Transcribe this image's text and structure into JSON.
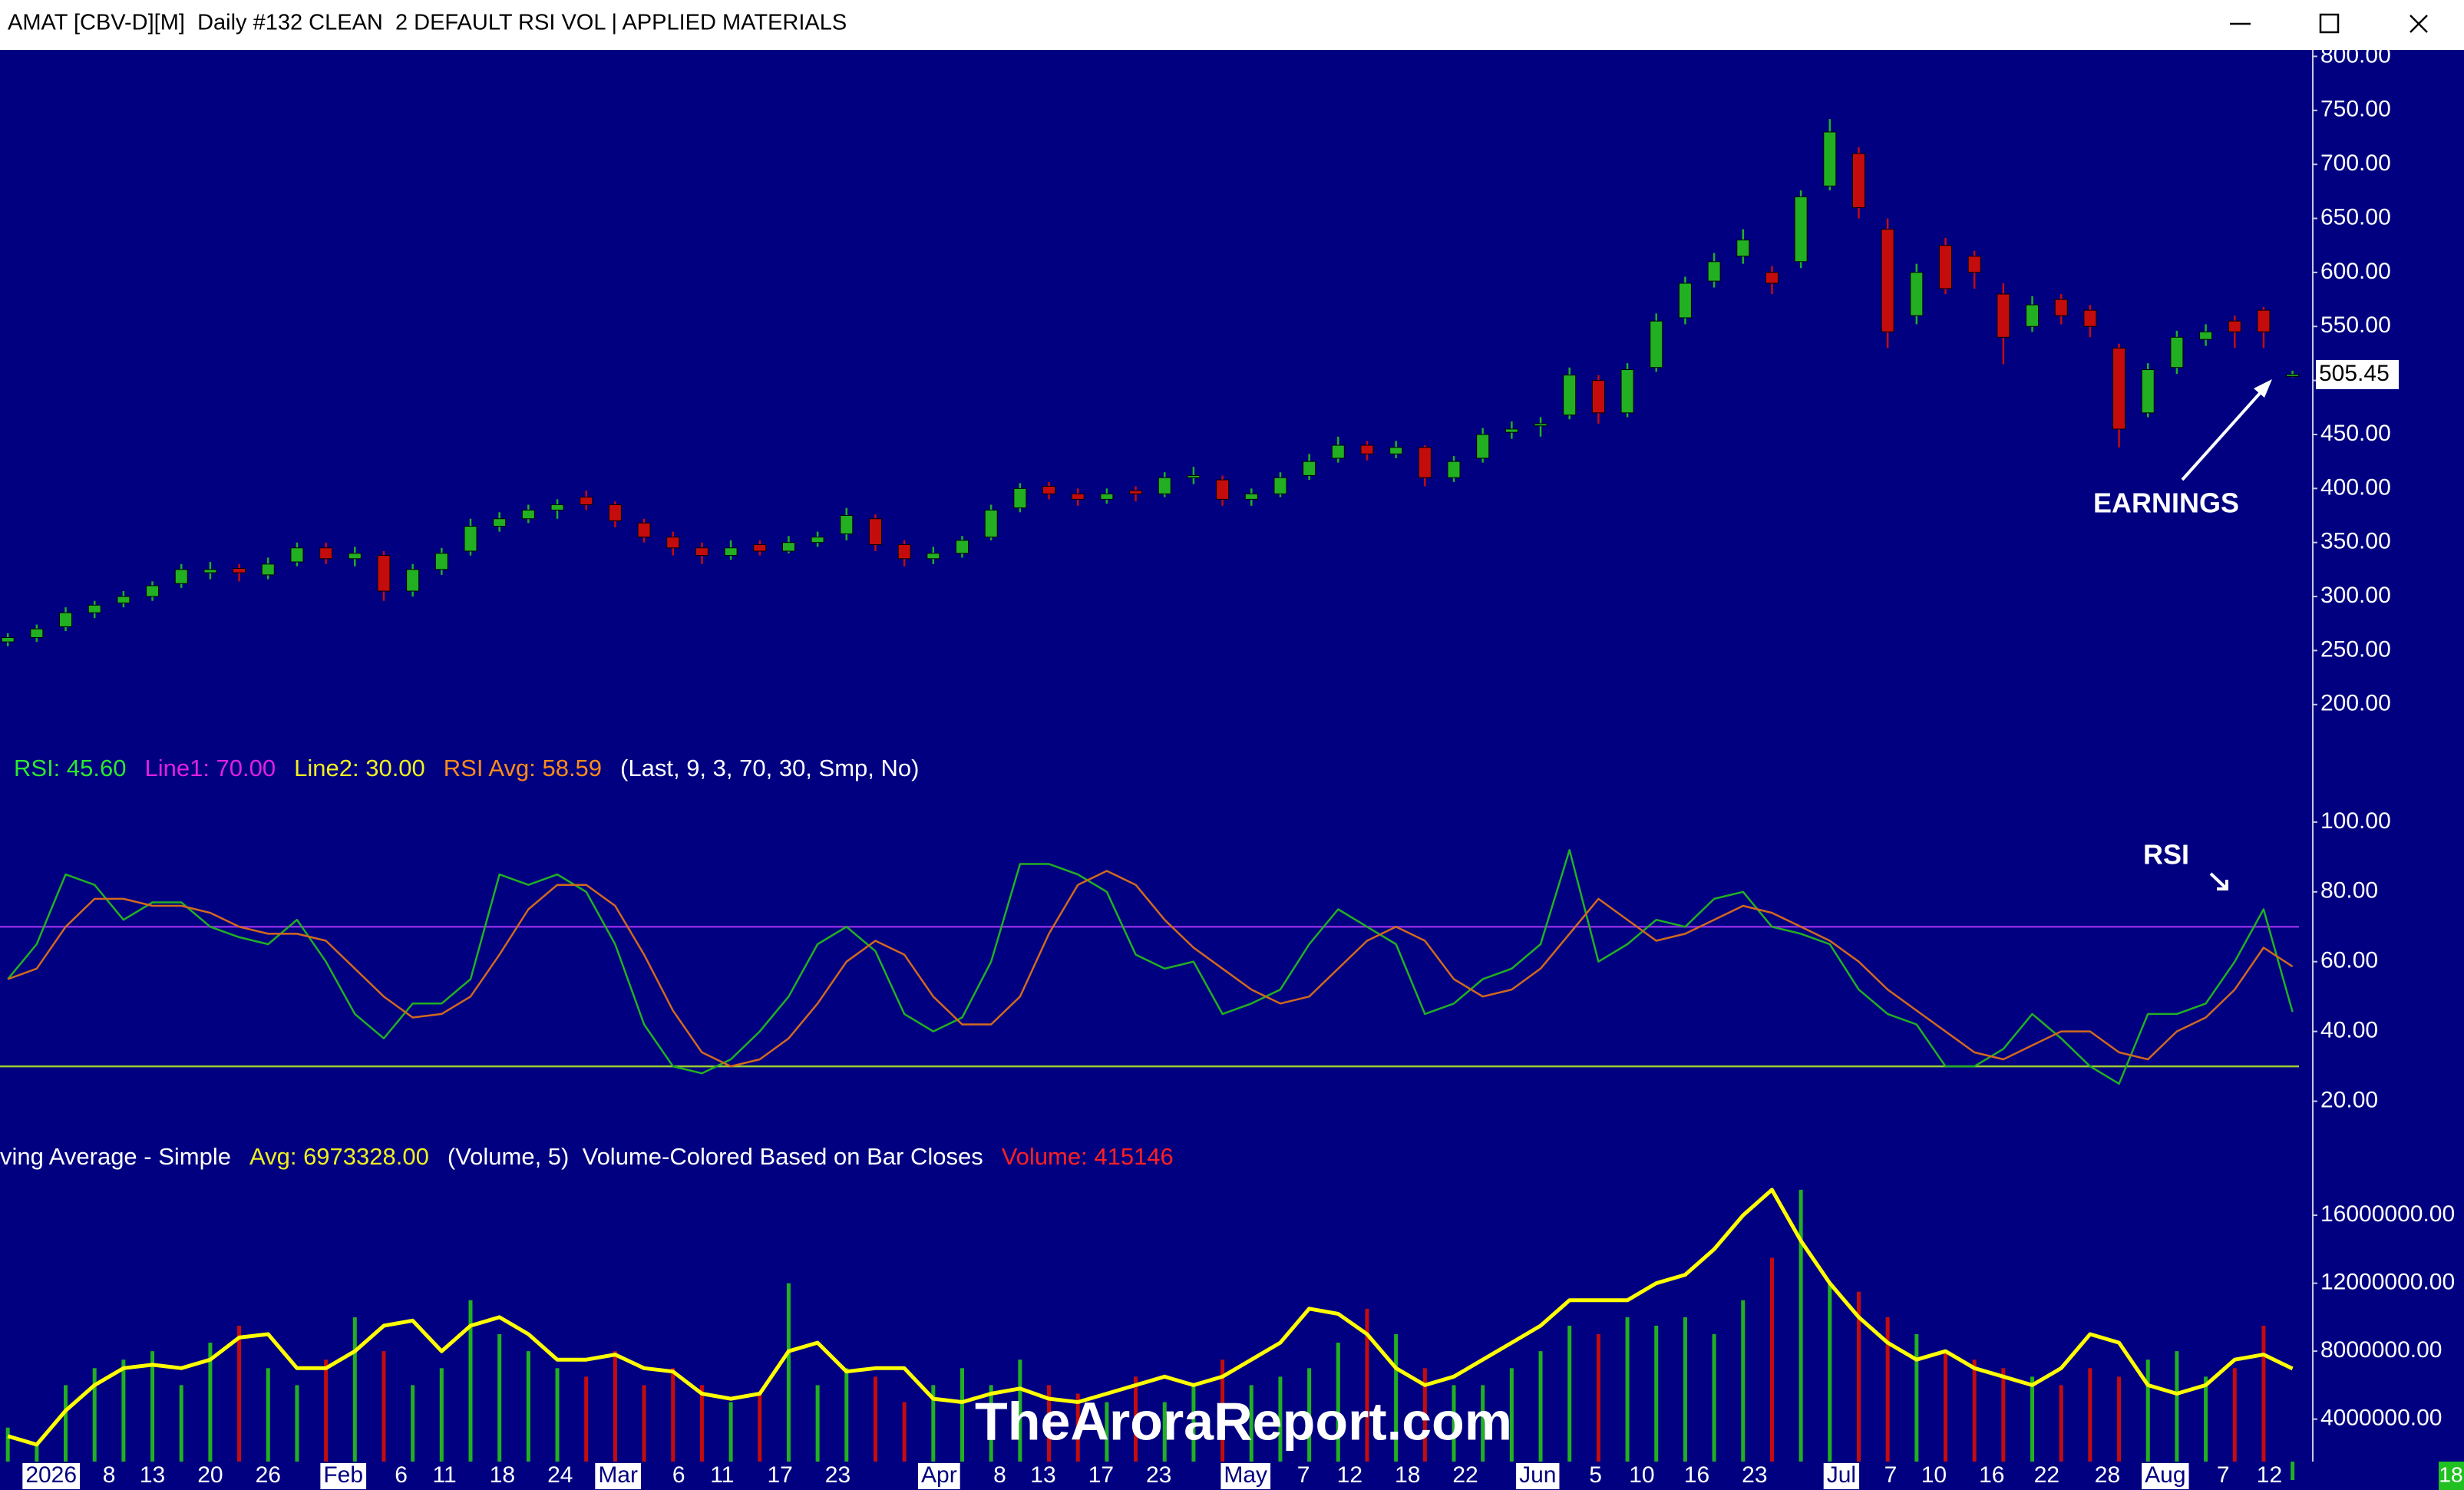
{
  "window": {
    "title": "AMAT [CBV-D][M]  Daily #132 CLEAN  2 DEFAULT RSI VOL | APPLIED MATERIALS",
    "corner_badge": "18"
  },
  "watermark": "TheAroraReport.com",
  "chart_data": [
    {
      "type": "candlestick",
      "up_color": "#22b022",
      "down_color": "#c40c0c",
      "xlim": [
        -0.27,
        79.7
      ],
      "ylim": [
        170,
        806
      ],
      "yticks": [
        {
          "value": 800,
          "label": "800.00"
        },
        {
          "value": 750,
          "label": "750.00"
        },
        {
          "value": 700,
          "label": "700.00"
        },
        {
          "value": 650,
          "label": "650.00"
        },
        {
          "value": 600,
          "label": "600.00"
        },
        {
          "value": 550,
          "label": "550.00"
        },
        {
          "value": 500,
          "label": "500.00"
        },
        {
          "value": 450,
          "label": "450.00"
        },
        {
          "value": 400,
          "label": "400.00"
        },
        {
          "value": 350,
          "label": "350.00"
        },
        {
          "value": 300,
          "label": "300.00"
        },
        {
          "value": 250,
          "label": "250.00"
        },
        {
          "value": 200,
          "label": "200.00"
        }
      ],
      "open": [
        258,
        262,
        272,
        285,
        294,
        300,
        312,
        322,
        326,
        320,
        332,
        345,
        335,
        338,
        305,
        325,
        342,
        365,
        372,
        380,
        392,
        385,
        368,
        355,
        345,
        338,
        348,
        342,
        350,
        358,
        372,
        348,
        335,
        340,
        355,
        382,
        402,
        395,
        390,
        398,
        395,
        410,
        408,
        390,
        395,
        412,
        428,
        440,
        432,
        438,
        410,
        428,
        452,
        458,
        468,
        500,
        470,
        512,
        558,
        592,
        615,
        600,
        610,
        680,
        710,
        640,
        560,
        625,
        615,
        580,
        550,
        575,
        565,
        530,
        470,
        512,
        538,
        555,
        565,
        505
      ],
      "high": [
        266,
        274,
        290,
        296,
        305,
        314,
        330,
        332,
        330,
        336,
        350,
        350,
        346,
        342,
        330,
        345,
        372,
        378,
        385,
        390,
        398,
        388,
        372,
        360,
        350,
        352,
        352,
        356,
        360,
        382,
        376,
        352,
        346,
        356,
        385,
        405,
        406,
        400,
        400,
        402,
        415,
        420,
        412,
        400,
        415,
        432,
        448,
        444,
        444,
        440,
        430,
        456,
        462,
        466,
        512,
        505,
        516,
        562,
        596,
        618,
        640,
        606,
        676,
        742,
        716,
        650,
        608,
        632,
        620,
        590,
        578,
        580,
        570,
        534,
        516,
        546,
        552,
        560,
        568,
        509
      ],
      "low": [
        254,
        258,
        268,
        280,
        290,
        296,
        308,
        316,
        314,
        316,
        328,
        330,
        328,
        296,
        300,
        320,
        338,
        360,
        368,
        372,
        380,
        364,
        350,
        338,
        330,
        334,
        338,
        340,
        346,
        352,
        342,
        328,
        330,
        336,
        352,
        378,
        390,
        384,
        386,
        388,
        392,
        404,
        384,
        384,
        392,
        408,
        424,
        426,
        428,
        402,
        406,
        424,
        446,
        448,
        464,
        460,
        466,
        508,
        552,
        586,
        608,
        580,
        604,
        676,
        650,
        530,
        552,
        580,
        585,
        515,
        545,
        552,
        540,
        438,
        466,
        506,
        532,
        530,
        530,
        503
      ],
      "close": [
        262,
        270,
        285,
        292,
        300,
        310,
        325,
        325,
        322,
        330,
        345,
        335,
        340,
        305,
        325,
        340,
        365,
        372,
        380,
        385,
        385,
        370,
        355,
        345,
        338,
        345,
        342,
        350,
        355,
        375,
        348,
        335,
        340,
        352,
        380,
        400,
        395,
        390,
        395,
        395,
        410,
        412,
        390,
        395,
        410,
        425,
        440,
        432,
        438,
        410,
        425,
        450,
        455,
        460,
        505,
        470,
        510,
        555,
        590,
        610,
        630,
        590,
        670,
        730,
        660,
        545,
        600,
        585,
        600,
        540,
        570,
        560,
        550,
        455,
        510,
        540,
        545,
        545,
        545,
        505.45
      ],
      "annotation": "EARNINGS"
    },
    {
      "type": "line",
      "header": [
        {
          "text": "RSI: 45.60",
          "color": "#2ee82e"
        },
        {
          "text": "Line1: 70.00",
          "color": "#e020e0"
        },
        {
          "text": "Line2: 30.00",
          "color": "#f0f020"
        },
        {
          "text": "RSI Avg: 58.59",
          "color": "#ff8c1a"
        },
        {
          "text": "(Last, 9, 3, 70, 30, Smp, No)",
          "color": "#ffffff"
        }
      ],
      "xlim": [
        -0.27,
        79.7
      ],
      "ylim": [
        10,
        109
      ],
      "yticks": [
        {
          "value": 100,
          "label": "100.00"
        },
        {
          "value": 80,
          "label": "80.00"
        },
        {
          "value": 60,
          "label": "60.00"
        },
        {
          "value": 40,
          "label": "40.00"
        },
        {
          "value": 20,
          "label": "20.00"
        }
      ],
      "hlines": [
        {
          "value": 70,
          "color": "#8a2be2"
        },
        {
          "value": 30,
          "color": "#9acd32"
        }
      ],
      "series": [
        {
          "color": "#22b022",
          "values": [
            55,
            65,
            85,
            82,
            72,
            77,
            77,
            70,
            67,
            65,
            72,
            60,
            45,
            38,
            48,
            48,
            55,
            85,
            82,
            85,
            80,
            65,
            42,
            30,
            28,
            32,
            40,
            50,
            65,
            70,
            63,
            45,
            40,
            44,
            60,
            88,
            88,
            85,
            80,
            62,
            58,
            60,
            45,
            48,
            52,
            65,
            75,
            70,
            65,
            45,
            48,
            55,
            58,
            65,
            92,
            60,
            65,
            72,
            70,
            78,
            80,
            70,
            68,
            65,
            52,
            45,
            42,
            30,
            30,
            35,
            45,
            38,
            30,
            25,
            45,
            45,
            48,
            60,
            75,
            45.6
          ]
        },
        {
          "color": "#d2691e",
          "values": [
            55,
            58,
            70,
            78,
            78,
            76,
            76,
            74,
            70,
            68,
            68,
            66,
            58,
            50,
            44,
            45,
            50,
            62,
            75,
            82,
            82,
            76,
            62,
            46,
            34,
            30,
            32,
            38,
            48,
            60,
            66,
            62,
            50,
            42,
            42,
            50,
            68,
            82,
            86,
            82,
            72,
            64,
            58,
            52,
            48,
            50,
            58,
            66,
            70,
            66,
            55,
            50,
            52,
            58,
            68,
            78,
            72,
            66,
            68,
            72,
            76,
            74,
            70,
            66,
            60,
            52,
            46,
            40,
            34,
            32,
            36,
            40,
            40,
            34,
            32,
            40,
            44,
            52,
            64,
            58.59
          ]
        }
      ],
      "annotation": "RSI"
    },
    {
      "type": "bar",
      "header": [
        {
          "text": "ving Average - Simple",
          "color": "#ffffff"
        },
        {
          "text": "Avg: 6973328.00",
          "color": "#f0f020"
        },
        {
          "text": "(Volume, 5)  Volume-Colored Based on Bar Closes",
          "color": "#ffffff"
        },
        {
          "text": "Volume: 415146",
          "color": "#ff2020"
        }
      ],
      "xlim": [
        -0.27,
        79.7
      ],
      "ylim": [
        1500000,
        18400000
      ],
      "yticks": [
        {
          "value": 16000000,
          "label": "16000000.00"
        },
        {
          "value": 12000000,
          "label": "12000000.00"
        },
        {
          "value": 8000000,
          "label": "8000000.00"
        },
        {
          "value": 4000000,
          "label": "4000000.00"
        }
      ],
      "values": [
        3500000,
        2500000,
        6000000,
        7000000,
        7500000,
        8000000,
        6000000,
        8500000,
        9500000,
        7000000,
        6000000,
        7500000,
        10000000,
        8000000,
        6000000,
        7000000,
        11000000,
        9000000,
        8000000,
        7000000,
        6500000,
        8000000,
        6000000,
        7000000,
        6000000,
        5000000,
        5500000,
        12000000,
        6000000,
        7000000,
        6500000,
        5000000,
        6000000,
        7000000,
        6000000,
        7500000,
        6000000,
        5500000,
        5000000,
        6500000,
        5000000,
        6000000,
        7500000,
        6000000,
        6500000,
        7000000,
        8500000,
        10500000,
        9000000,
        7000000,
        6000000,
        6000000,
        7000000,
        8000000,
        9500000,
        9000000,
        10000000,
        9500000,
        10000000,
        9000000,
        11000000,
        13500000,
        17500000,
        12000000,
        11500000,
        10000000,
        9000000,
        8000000,
        7500000,
        7000000,
        6500000,
        6000000,
        7000000,
        6500000,
        7500000,
        8000000,
        6500000,
        7000000,
        9500000,
        415146
      ],
      "average": {
        "color": "#ffff00",
        "values": [
          3000000,
          2500000,
          4500000,
          6000000,
          7000000,
          7200000,
          7000000,
          7500000,
          8800000,
          9000000,
          7000000,
          7000000,
          8000000,
          9500000,
          9800000,
          8000000,
          9500000,
          10000000,
          9000000,
          7500000,
          7500000,
          7800000,
          7000000,
          6800000,
          5500000,
          5200000,
          5500000,
          8000000,
          8500000,
          6800000,
          7000000,
          7000000,
          5200000,
          5000000,
          5500000,
          5800000,
          5200000,
          5000000,
          5500000,
          6000000,
          6500000,
          6000000,
          6500000,
          7500000,
          8500000,
          10500000,
          10200000,
          9000000,
          7000000,
          6000000,
          6500000,
          7500000,
          8500000,
          9500000,
          11000000,
          11000000,
          11000000,
          12000000,
          12500000,
          14000000,
          16000000,
          17500000,
          14500000,
          12000000,
          10000000,
          8500000,
          7500000,
          8000000,
          7000000,
          6500000,
          6000000,
          7000000,
          9000000,
          8500000,
          6000000,
          5500000,
          6000000,
          7500000,
          7800000,
          6973328
        ]
      },
      "xticks": [
        {
          "value": 1.5,
          "label": "2026",
          "boxed": true
        },
        {
          "value": 3.5,
          "label": "8"
        },
        {
          "value": 5,
          "label": "13"
        },
        {
          "value": 7,
          "label": "20"
        },
        {
          "value": 9,
          "label": "26"
        },
        {
          "value": 11.6,
          "label": "Feb",
          "boxed": true
        },
        {
          "value": 13.6,
          "label": "6"
        },
        {
          "value": 15.1,
          "label": "11"
        },
        {
          "value": 17.1,
          "label": "18"
        },
        {
          "value": 19.1,
          "label": "24"
        },
        {
          "value": 21.1,
          "label": "Mar",
          "boxed": true
        },
        {
          "value": 23.2,
          "label": "6"
        },
        {
          "value": 24.7,
          "label": "11"
        },
        {
          "value": 26.7,
          "label": "17"
        },
        {
          "value": 28.7,
          "label": "23"
        },
        {
          "value": 32.2,
          "label": "Apr",
          "boxed": true
        },
        {
          "value": 34.3,
          "label": "8"
        },
        {
          "value": 35.8,
          "label": "13"
        },
        {
          "value": 37.8,
          "label": "17"
        },
        {
          "value": 39.8,
          "label": "23"
        },
        {
          "value": 42.8,
          "label": "May",
          "boxed": true
        },
        {
          "value": 44.8,
          "label": "7"
        },
        {
          "value": 46.4,
          "label": "12"
        },
        {
          "value": 48.4,
          "label": "18"
        },
        {
          "value": 50.4,
          "label": "22"
        },
        {
          "value": 52.9,
          "label": "Jun",
          "boxed": true
        },
        {
          "value": 54.9,
          "label": "5"
        },
        {
          "value": 56.5,
          "label": "10"
        },
        {
          "value": 58.4,
          "label": "16"
        },
        {
          "value": 60.4,
          "label": "23"
        },
        {
          "value": 63.4,
          "label": "Jul",
          "boxed": true
        },
        {
          "value": 65.1,
          "label": "7"
        },
        {
          "value": 66.6,
          "label": "10"
        },
        {
          "value": 68.6,
          "label": "16"
        },
        {
          "value": 70.5,
          "label": "22"
        },
        {
          "value": 72.6,
          "label": "28"
        },
        {
          "value": 74.6,
          "label": "Aug",
          "boxed": true
        },
        {
          "value": 76.6,
          "label": "7"
        },
        {
          "value": 78.2,
          "label": "12"
        }
      ]
    }
  ]
}
